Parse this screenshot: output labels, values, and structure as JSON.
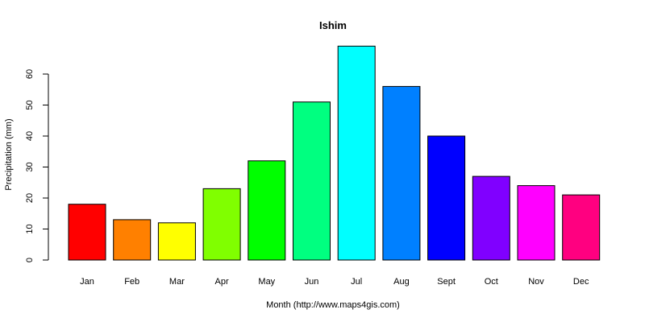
{
  "chart_data": {
    "type": "bar",
    "title": "Ishim",
    "xlabel": "Month (http://www.maps4gis.com)",
    "ylabel": "Precipitation (mm)",
    "ylim": [
      0,
      70
    ],
    "yticks": [
      0,
      10,
      20,
      30,
      40,
      50,
      60
    ],
    "grid": false,
    "legend": "none",
    "categories": [
      "Jan",
      "Feb",
      "Mar",
      "Apr",
      "May",
      "Jun",
      "Jul",
      "Aug",
      "Sept",
      "Oct",
      "Nov",
      "Dec"
    ],
    "values": [
      18,
      13,
      12,
      23,
      32,
      51,
      69,
      56,
      40,
      27,
      24,
      21
    ],
    "colors": [
      "#ff0000",
      "#ff8000",
      "#ffff00",
      "#80ff00",
      "#00ff00",
      "#00ff80",
      "#00ffff",
      "#0080ff",
      "#0000ff",
      "#8000ff",
      "#ff00ff",
      "#ff0080"
    ]
  }
}
